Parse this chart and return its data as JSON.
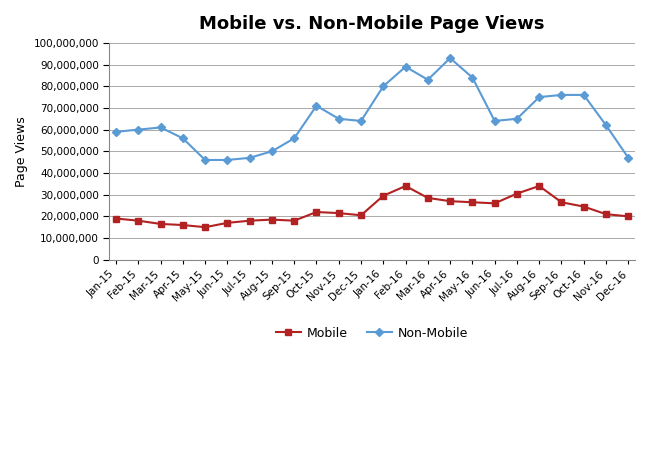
{
  "title": "Mobile vs. Non-Mobile Page Views",
  "ylabel": "Page Views",
  "categories": [
    "Jan-15",
    "Feb-15",
    "Mar-15",
    "Apr-15",
    "May-15",
    "Jun-15",
    "Jul-15",
    "Aug-15",
    "Sep-15",
    "Oct-15",
    "Nov-15",
    "Dec-15",
    "Jan-16",
    "Feb-16",
    "Mar-16",
    "Apr-16",
    "May-16",
    "Jun-16",
    "Jul-16",
    "Aug-16",
    "Sep-16",
    "Oct-16",
    "Nov-16",
    "Dec-16"
  ],
  "mobile": [
    19000000,
    18000000,
    16500000,
    16000000,
    15000000,
    17000000,
    18000000,
    18500000,
    18000000,
    22000000,
    21500000,
    20500000,
    29500000,
    34000000,
    28500000,
    27000000,
    26500000,
    26000000,
    30500000,
    34000000,
    26500000,
    24500000,
    21000000,
    20000000
  ],
  "non_mobile": [
    59000000,
    60000000,
    61000000,
    56000000,
    46000000,
    46000000,
    47000000,
    50000000,
    56000000,
    71000000,
    65000000,
    64000000,
    80000000,
    89000000,
    83000000,
    93000000,
    84000000,
    64000000,
    65000000,
    75000000,
    76000000,
    76000000,
    62000000,
    47000000
  ],
  "mobile_color": "#B22222",
  "non_mobile_color": "#5B9BD5",
  "ylim": [
    0,
    100000000
  ],
  "ytick_step": 10000000,
  "title_fontsize": 13,
  "axis_label_fontsize": 9,
  "tick_fontsize": 7.5,
  "legend_labels": [
    "Mobile",
    "Non-Mobile"
  ],
  "background_color": "#ffffff",
  "grid_color": "#aaaaaa"
}
